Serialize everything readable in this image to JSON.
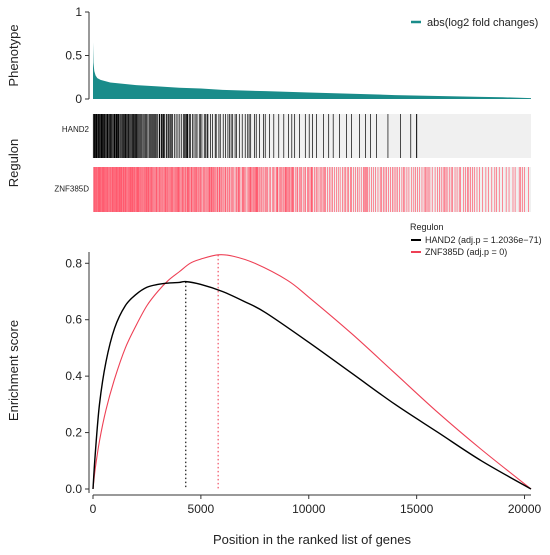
{
  "chart_data": [
    {
      "type": "area",
      "ylabel": "Phenotype",
      "ylim": [
        0,
        1
      ],
      "yticks": [
        0,
        0.5,
        1
      ],
      "xlim": [
        0,
        20300
      ],
      "legend": {
        "position": "top-right",
        "label": "abs(log2 fold changes)",
        "color": "#1a8c8a"
      },
      "x": [
        0,
        20,
        60,
        120,
        200,
        350,
        500,
        800,
        1200,
        1600,
        2000,
        3000,
        4000,
        5000,
        6000,
        8000,
        10000,
        12000,
        14000,
        16000,
        18000,
        19000,
        20300
      ],
      "values": [
        0.65,
        0.42,
        0.32,
        0.27,
        0.24,
        0.22,
        0.21,
        0.19,
        0.18,
        0.17,
        0.16,
        0.145,
        0.13,
        0.12,
        0.105,
        0.09,
        0.075,
        0.06,
        0.045,
        0.035,
        0.025,
        0.02,
        0.01
      ]
    },
    {
      "type": "heatmap",
      "subtype": "barcode",
      "ylabel": "Regulon",
      "rows": [
        {
          "name": "HAND2",
          "color": "#000000",
          "background": "#f0f0f0",
          "last_hit_position": 15000
        },
        {
          "name": "ZNF385D",
          "color": "#ff5a6e",
          "background": "#f0f0f0",
          "last_hit_position": 20300
        }
      ]
    },
    {
      "type": "line",
      "xlabel": "Position in the ranked list of genes",
      "ylabel": "Enrichment score",
      "xlim": [
        0,
        20300
      ],
      "ylim": [
        0,
        0.84
      ],
      "xticks": [
        0,
        5000,
        10000,
        15000,
        20000
      ],
      "yticks": [
        0.0,
        0.2,
        0.4,
        0.6,
        0.8
      ],
      "legend": {
        "title": "Regulon",
        "position": "top-right"
      },
      "series": [
        {
          "name": "HAND2",
          "label": "HAND2 (adj.p = 1.2036e−71)",
          "color": "#000000",
          "peak_x": 4300,
          "peak_y": 0.735,
          "x": [
            0,
            100,
            300,
            600,
            1000,
            1500,
            2000,
            2500,
            3000,
            3500,
            4000,
            4300,
            5000,
            6000,
            7000,
            8000,
            10000,
            12000,
            14000,
            16000,
            18000,
            20300
          ],
          "values": [
            0.0,
            0.12,
            0.3,
            0.45,
            0.57,
            0.65,
            0.69,
            0.715,
            0.725,
            0.73,
            0.732,
            0.735,
            0.725,
            0.7,
            0.665,
            0.625,
            0.52,
            0.41,
            0.3,
            0.2,
            0.1,
            0.0
          ]
        },
        {
          "name": "ZNF385D",
          "label": "ZNF385D (adj.p =          0)",
          "color": "#ee4055",
          "peak_x": 5800,
          "peak_y": 0.83,
          "x": [
            0,
            100,
            300,
            600,
            1000,
            1500,
            2000,
            2500,
            3000,
            3500,
            4000,
            4500,
            5000,
            5800,
            6500,
            7500,
            9000,
            10000,
            12000,
            14000,
            16000,
            18000,
            20300
          ],
          "values": [
            0.0,
            0.07,
            0.17,
            0.28,
            0.39,
            0.5,
            0.58,
            0.65,
            0.7,
            0.74,
            0.77,
            0.8,
            0.815,
            0.83,
            0.825,
            0.8,
            0.74,
            0.68,
            0.55,
            0.41,
            0.27,
            0.14,
            0.0
          ]
        }
      ]
    }
  ]
}
